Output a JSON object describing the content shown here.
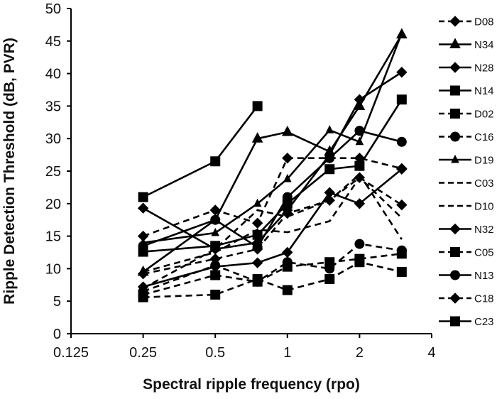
{
  "chart_data": {
    "type": "line",
    "title": "",
    "xlabel": "Spectral ripple frequency (rpo)",
    "ylabel": "Ripple Detection Threshold (dB, PVR)",
    "xscale": "log2",
    "xlim": [
      0.125,
      4
    ],
    "ylim": [
      0,
      50
    ],
    "xticks": [
      "0.125",
      "0.25",
      "0.5",
      "1",
      "2",
      "4"
    ],
    "yticks": [
      "0",
      "5",
      "10",
      "15",
      "20",
      "25",
      "30",
      "35",
      "40",
      "45",
      "50"
    ],
    "grid": false,
    "legend_position": "right",
    "x": [
      0.25,
      0.5,
      0.75,
      1,
      1.5,
      2,
      3
    ],
    "series": [
      {
        "name": "D08",
        "line": "dashed",
        "marker": "diamond",
        "values": [
          15,
          19,
          17,
          27,
          27,
          27,
          25.4
        ]
      },
      {
        "name": "N34",
        "line": "solid",
        "marker": "triangle",
        "values": [
          9.5,
          17.5,
          30,
          31,
          28,
          35,
          46
        ]
      },
      {
        "name": "N28",
        "line": "solid",
        "marker": "diamond",
        "values": [
          19.3,
          13,
          14,
          19,
          27.5,
          36,
          40.2
        ]
      },
      {
        "name": "N14",
        "line": "solid",
        "marker": "square",
        "values": [
          12.6,
          13.5,
          15.2,
          20,
          25.3,
          25.8,
          36
        ]
      },
      {
        "name": "D02",
        "line": "dashed",
        "marker": "square",
        "values": [
          6,
          9,
          8,
          10.3,
          11,
          11.5,
          12.3
        ]
      },
      {
        "name": "C16",
        "line": "dashed",
        "marker": "circle",
        "values": [
          6.5,
          10.5,
          8,
          11,
          10,
          13.8,
          12.8
        ]
      },
      {
        "name": "D19",
        "line": "solid",
        "marker": "small-triangle",
        "values": [
          14,
          15.5,
          20,
          23.8,
          31.3,
          29.5,
          46.2
        ]
      },
      {
        "name": "C03",
        "line": "dashed",
        "marker": "none",
        "values": [
          9.5,
          12.5,
          16,
          15.6,
          17.3,
          24,
          17.8
        ]
      },
      {
        "name": "D10",
        "line": "dashed",
        "marker": "none",
        "values": [
          7,
          13,
          19,
          18,
          20.5,
          24.5,
          14.5
        ]
      },
      {
        "name": "N32",
        "line": "solid",
        "marker": "diamond",
        "values": [
          7.2,
          10.3,
          10.9,
          12.5,
          21.7,
          20,
          25.3
        ]
      },
      {
        "name": "C05",
        "line": "dashed",
        "marker": "square",
        "values": [
          5.6,
          6,
          8.4,
          6.7,
          8.4,
          11,
          9.5
        ]
      },
      {
        "name": "N13",
        "line": "solid",
        "marker": "circle",
        "values": [
          13.5,
          17.5,
          13.3,
          21,
          27,
          31.2,
          29.5
        ]
      },
      {
        "name": "C18",
        "line": "dashed",
        "marker": "diamond",
        "values": [
          9.2,
          11.5,
          13,
          18.5,
          20.5,
          24,
          19.8
        ]
      },
      {
        "name": "C23",
        "line": "solid",
        "marker": "square",
        "values": [
          21,
          26.5,
          35,
          null,
          null,
          null,
          null
        ]
      }
    ],
    "colors": {
      "line": "#000000",
      "text": "#111111"
    }
  }
}
